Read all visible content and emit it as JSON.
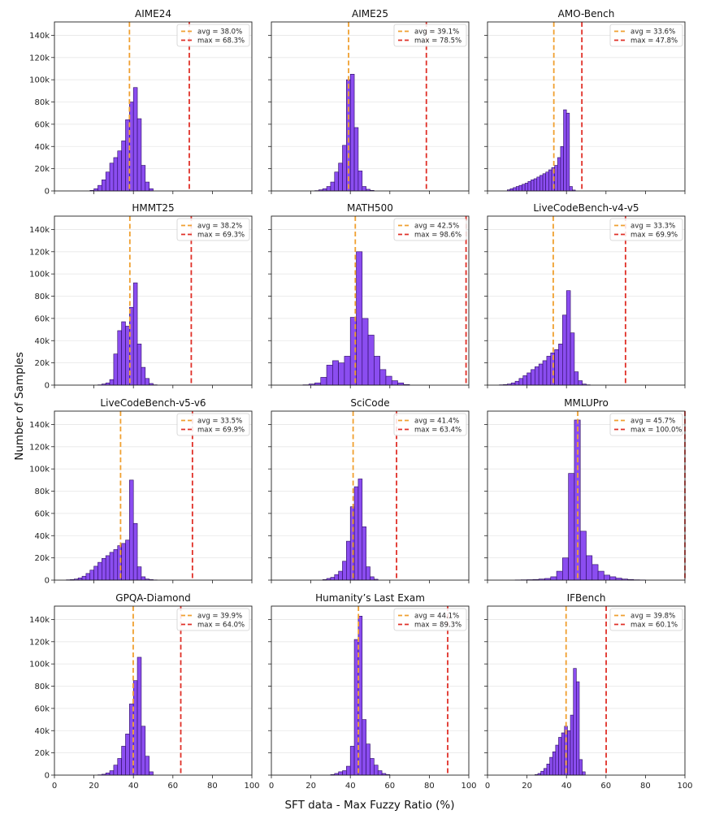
{
  "figure": {
    "ylabel": "Number of Samples",
    "xlabel": "SFT data - Max Fuzzy Ratio (%)"
  },
  "colors": {
    "bar_fill": "#8B4DF0",
    "bar_edge": "#2a0a5e",
    "avg_line": "#F0A030",
    "max_line": "#E03028",
    "grid": "#e6e6e6"
  },
  "chart_data": [
    {
      "type": "bar",
      "title": "AIME24",
      "avg_label": "avg = 38.0%",
      "max_label": "max = 68.3%",
      "avg": 38.0,
      "max": 68.3,
      "bin_width": 2,
      "bin_starts": [
        18,
        20,
        22,
        24,
        26,
        28,
        30,
        32,
        34,
        36,
        38,
        40,
        42,
        44,
        46,
        48
      ],
      "values": [
        500,
        2000,
        5000,
        10000,
        17000,
        25000,
        30000,
        36000,
        45000,
        64000,
        80000,
        93000,
        65000,
        23000,
        8000,
        2000
      ],
      "xlim": [
        0,
        100
      ],
      "ylim": [
        0,
        152000
      ],
      "xticks": [
        "0",
        "20",
        "40",
        "60",
        "80",
        "100"
      ],
      "yticks": [
        "0",
        "20k",
        "40k",
        "60k",
        "80k",
        "100k",
        "120k",
        "140k"
      ]
    },
    {
      "type": "bar",
      "title": "AIME25",
      "avg_label": "avg = 39.1%",
      "max_label": "max = 78.5%",
      "avg": 39.1,
      "max": 78.5,
      "bin_width": 2,
      "bin_starts": [
        22,
        24,
        26,
        28,
        30,
        32,
        34,
        36,
        38,
        40,
        42,
        44,
        46,
        48,
        50
      ],
      "values": [
        300,
        1000,
        2000,
        4000,
        8000,
        17000,
        25000,
        41000,
        100000,
        105000,
        57000,
        18000,
        4000,
        1500,
        500
      ],
      "xlim": [
        0,
        100
      ],
      "ylim": [
        0,
        152000
      ],
      "xticks": [
        "0",
        "20",
        "40",
        "60",
        "80",
        "100"
      ],
      "yticks": [
        "0",
        "20k",
        "40k",
        "60k",
        "80k",
        "100k",
        "120k",
        "140k"
      ]
    },
    {
      "type": "bar",
      "title": "AMO-Bench",
      "avg_label": "avg = 33.6%",
      "max_label": "max = 47.8%",
      "avg": 33.6,
      "max": 47.8,
      "bin_width": 1.5,
      "bin_starts": [
        10,
        11.5,
        13,
        14.5,
        16,
        17.5,
        19,
        20.5,
        22,
        23.5,
        25,
        26.5,
        28,
        29.5,
        31,
        32.5,
        34,
        35.5,
        37,
        38.5,
        40,
        41.5,
        43
      ],
      "values": [
        1000,
        2000,
        3000,
        4000,
        5000,
        6000,
        7000,
        8500,
        10000,
        11000,
        12500,
        14000,
        15500,
        17000,
        19000,
        21000,
        23000,
        30000,
        40000,
        73000,
        70000,
        4000,
        800
      ],
      "xlim": [
        0,
        100
      ],
      "ylim": [
        0,
        152000
      ],
      "xticks": [
        "0",
        "20",
        "40",
        "60",
        "80",
        "100"
      ],
      "yticks": [
        "0",
        "20k",
        "40k",
        "60k",
        "80k",
        "100k",
        "120k",
        "140k"
      ]
    },
    {
      "type": "bar",
      "title": "HMMT25",
      "avg_label": "avg = 38.2%",
      "max_label": "max = 69.3%",
      "avg": 38.2,
      "max": 69.3,
      "bin_width": 2,
      "bin_starts": [
        22,
        24,
        26,
        28,
        30,
        32,
        34,
        36,
        38,
        40,
        42,
        44,
        46,
        48,
        50
      ],
      "values": [
        300,
        1000,
        2000,
        5000,
        28000,
        49000,
        57000,
        53000,
        70000,
        92000,
        37000,
        16000,
        6000,
        1500,
        300
      ],
      "xlim": [
        0,
        100
      ],
      "ylim": [
        0,
        152000
      ],
      "xticks": [
        "0",
        "20",
        "40",
        "60",
        "80",
        "100"
      ],
      "yticks": [
        "0",
        "20k",
        "40k",
        "60k",
        "80k",
        "100k",
        "120k",
        "140k"
      ]
    },
    {
      "type": "bar",
      "title": "MATH500",
      "avg_label": "avg = 42.5%",
      "max_label": "max = 98.6%",
      "avg": 42.5,
      "max": 98.6,
      "bin_width": 3,
      "bin_starts": [
        16,
        19,
        22,
        25,
        28,
        31,
        34,
        37,
        40,
        43,
        46,
        49,
        52,
        55,
        58,
        61,
        64,
        67
      ],
      "values": [
        300,
        1000,
        2000,
        7000,
        18000,
        22000,
        20000,
        26000,
        61000,
        120000,
        60000,
        45000,
        26000,
        14000,
        8000,
        4000,
        2000,
        500
      ],
      "xlim": [
        0,
        100
      ],
      "ylim": [
        0,
        152000
      ],
      "xticks": [
        "0",
        "20",
        "40",
        "60",
        "80",
        "100"
      ],
      "yticks": [
        "0",
        "20k",
        "40k",
        "60k",
        "80k",
        "100k",
        "120k",
        "140k"
      ]
    },
    {
      "type": "bar",
      "title": "LiveCodeBench-v4-v5",
      "avg_label": "avg = 33.3%",
      "max_label": "max = 69.9%",
      "avg": 33.3,
      "max": 69.9,
      "bin_width": 2,
      "bin_starts": [
        6,
        8,
        10,
        12,
        14,
        16,
        18,
        20,
        22,
        24,
        26,
        28,
        30,
        32,
        34,
        36,
        38,
        40,
        42,
        44,
        46,
        48,
        50
      ],
      "values": [
        300,
        500,
        1000,
        2000,
        3500,
        6000,
        8500,
        11000,
        14000,
        16500,
        19000,
        22000,
        26000,
        29000,
        32000,
        37000,
        63000,
        85000,
        47000,
        12000,
        4000,
        1000,
        300
      ],
      "xlim": [
        0,
        100
      ],
      "ylim": [
        0,
        152000
      ],
      "xticks": [
        "0",
        "20",
        "40",
        "60",
        "80",
        "100"
      ],
      "yticks": [
        "0",
        "20k",
        "40k",
        "60k",
        "80k",
        "100k",
        "120k",
        "140k"
      ]
    },
    {
      "type": "bar",
      "title": "LiveCodeBench-v5-v6",
      "avg_label": "avg = 33.5%",
      "max_label": "max = 69.9%",
      "avg": 33.5,
      "max": 69.9,
      "bin_width": 2,
      "bin_starts": [
        6,
        8,
        10,
        12,
        14,
        16,
        18,
        20,
        22,
        24,
        26,
        28,
        30,
        32,
        34,
        36,
        38,
        40,
        42,
        44,
        46,
        48,
        50
      ],
      "values": [
        300,
        500,
        1000,
        2000,
        3500,
        6000,
        9000,
        12500,
        16000,
        19500,
        22000,
        25000,
        27500,
        31000,
        33000,
        36000,
        90000,
        51000,
        12000,
        3000,
        1000,
        500,
        200
      ],
      "xlim": [
        0,
        100
      ],
      "ylim": [
        0,
        152000
      ],
      "xticks": [
        "0",
        "20",
        "40",
        "60",
        "80",
        "100"
      ],
      "yticks": [
        "0",
        "20k",
        "40k",
        "60k",
        "80k",
        "100k",
        "120k",
        "140k"
      ]
    },
    {
      "type": "bar",
      "title": "SciCode",
      "avg_label": "avg = 41.4%",
      "max_label": "max = 63.4%",
      "avg": 41.4,
      "max": 63.4,
      "bin_width": 2,
      "bin_starts": [
        26,
        28,
        30,
        32,
        34,
        36,
        38,
        40,
        42,
        44,
        46,
        48,
        50,
        52
      ],
      "values": [
        500,
        1500,
        2500,
        5000,
        8000,
        17000,
        35000,
        66000,
        84000,
        91000,
        48000,
        12000,
        3000,
        800
      ],
      "xlim": [
        0,
        100
      ],
      "ylim": [
        0,
        152000
      ],
      "xticks": [
        "0",
        "20",
        "40",
        "60",
        "80",
        "100"
      ],
      "yticks": [
        "0",
        "20k",
        "40k",
        "60k",
        "80k",
        "100k",
        "120k",
        "140k"
      ]
    },
    {
      "type": "bar",
      "title": "MMLUPro",
      "avg_label": "avg = 45.7%",
      "max_label": "max = 100.0%",
      "avg": 45.7,
      "max": 100.0,
      "bin_width": 3,
      "bin_starts": [
        14,
        17,
        20,
        23,
        26,
        29,
        32,
        35,
        38,
        41,
        44,
        47,
        50,
        53,
        56,
        59,
        62,
        65,
        68,
        71,
        74,
        77
      ],
      "values": [
        200,
        300,
        400,
        600,
        1000,
        1500,
        3000,
        8000,
        20000,
        96000,
        144000,
        44000,
        22000,
        14000,
        8000,
        4500,
        3000,
        1800,
        1000,
        600,
        300,
        200
      ],
      "xlim": [
        0,
        100
      ],
      "ylim": [
        0,
        152000
      ],
      "xticks": [
        "0",
        "20",
        "40",
        "60",
        "80",
        "100"
      ],
      "yticks": [
        "0",
        "20k",
        "40k",
        "60k",
        "80k",
        "100k",
        "120k",
        "140k"
      ]
    },
    {
      "type": "bar",
      "title": "GPQA-Diamond",
      "avg_label": "avg = 39.9%",
      "max_label": "max = 64.0%",
      "avg": 39.9,
      "max": 64.0,
      "bin_width": 2,
      "bin_starts": [
        22,
        24,
        26,
        28,
        30,
        32,
        34,
        36,
        38,
        40,
        42,
        44,
        46,
        48
      ],
      "values": [
        300,
        800,
        2000,
        4000,
        9000,
        15000,
        26000,
        37000,
        64000,
        85000,
        106000,
        44000,
        17000,
        3000
      ],
      "xlim": [
        0,
        100
      ],
      "ylim": [
        0,
        152000
      ],
      "xticks": [
        "0",
        "20",
        "40",
        "60",
        "80",
        "100"
      ],
      "yticks": [
        "0",
        "20k",
        "40k",
        "60k",
        "80k",
        "100k",
        "120k",
        "140k"
      ]
    },
    {
      "type": "bar",
      "title": "Humanity’s Last Exam",
      "avg_label": "avg = 44.1%",
      "max_label": "max = 89.3%",
      "avg": 44.1,
      "max": 89.3,
      "bin_width": 2,
      "bin_starts": [
        30,
        32,
        34,
        36,
        38,
        40,
        42,
        44,
        46,
        48,
        50,
        52,
        54,
        56,
        58
      ],
      "values": [
        500,
        1500,
        3000,
        4000,
        8000,
        26000,
        122000,
        143000,
        50000,
        28000,
        15000,
        9000,
        4000,
        1500,
        500
      ],
      "xlim": [
        0,
        100
      ],
      "ylim": [
        0,
        152000
      ],
      "xticks": [
        "0",
        "20",
        "40",
        "60",
        "80",
        "100"
      ],
      "yticks": [
        "0",
        "20k",
        "40k",
        "60k",
        "80k",
        "100k",
        "120k",
        "140k"
      ]
    },
    {
      "type": "bar",
      "title": "IFBench",
      "avg_label": "avg = 39.8%",
      "max_label": "max = 60.1%",
      "avg": 39.8,
      "max": 60.1,
      "bin_width": 1.5,
      "bin_starts": [
        24,
        25.5,
        27,
        28.5,
        30,
        31.5,
        33,
        34.5,
        36,
        37.5,
        39,
        40.5,
        42,
        43.5,
        45,
        46.5,
        48
      ],
      "values": [
        500,
        1500,
        3500,
        6000,
        10000,
        16000,
        21000,
        27000,
        34000,
        38000,
        44000,
        40000,
        54000,
        96000,
        84000,
        14000,
        3000
      ],
      "xlim": [
        0,
        100
      ],
      "ylim": [
        0,
        152000
      ],
      "xticks": [
        "0",
        "20",
        "40",
        "60",
        "80",
        "100"
      ],
      "yticks": [
        "0",
        "20k",
        "40k",
        "60k",
        "80k",
        "100k",
        "120k",
        "140k"
      ]
    }
  ]
}
